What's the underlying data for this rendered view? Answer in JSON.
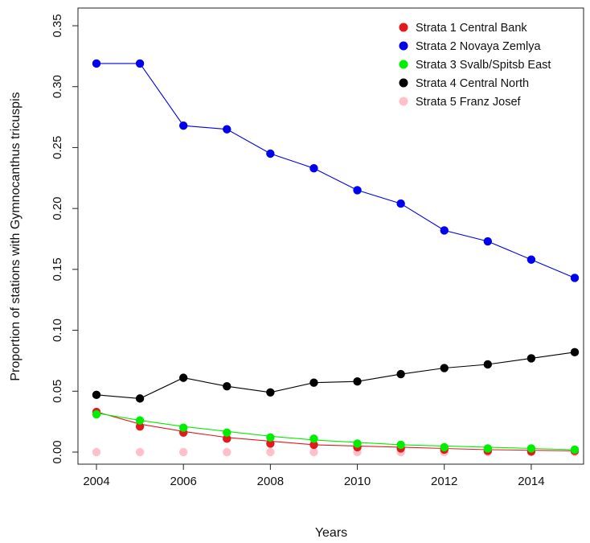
{
  "chart_data": {
    "type": "line",
    "title": "",
    "xlabel": "Years",
    "ylabel": "Proportion of stations with Gymnocanthus tricuspis",
    "x": [
      2004,
      2005,
      2006,
      2007,
      2008,
      2009,
      2010,
      2011,
      2012,
      2013,
      2014,
      2015
    ],
    "xlim": [
      2004,
      2015
    ],
    "ylim": [
      0,
      0.35
    ],
    "x_ticks": [
      2004,
      2006,
      2008,
      2010,
      2012,
      2014
    ],
    "x_tick_labels": [
      "2004",
      "2006",
      "2008",
      "2010",
      "2012",
      "2014"
    ],
    "y_ticks": [
      0,
      0.05,
      0.1,
      0.15,
      0.2,
      0.25,
      0.3,
      0.35
    ],
    "y_tick_labels": [
      "0.00",
      "0.05",
      "0.10",
      "0.15",
      "0.20",
      "0.25",
      "0.30",
      "0.35"
    ],
    "grid": false,
    "legend_position": "top-right",
    "series": [
      {
        "name": "Strata 1 Central Bank",
        "color": "#e31a1c",
        "values": [
          0.033,
          0.021,
          0.016,
          0.011,
          0.007,
          0.006,
          0.004,
          0.003,
          0.002,
          0.001,
          0.0005,
          0.001
        ],
        "fit": [
          0.033,
          0.023,
          0.017,
          0.012,
          0.009,
          0.006,
          0.005,
          0.004,
          0.003,
          0.002,
          0.0015,
          0.001
        ]
      },
      {
        "name": "Strata 2 Novaya Zemlya",
        "color": "#0000ee",
        "values": [
          0.319,
          0.319,
          0.268,
          0.265,
          0.245,
          0.233,
          0.215,
          0.204,
          0.182,
          0.173,
          0.158,
          0.143
        ]
      },
      {
        "name": "Strata 3 Svalb/Spitsb East",
        "color": "#00ee00",
        "values": [
          0.031,
          0.026,
          0.02,
          0.016,
          0.012,
          0.011,
          0.007,
          0.006,
          0.004,
          0.003,
          0.003,
          0.002
        ],
        "fit": [
          0.032,
          0.026,
          0.021,
          0.017,
          0.013,
          0.01,
          0.008,
          0.006,
          0.005,
          0.004,
          0.003,
          0.002
        ]
      },
      {
        "name": "Strata 4 Central North",
        "color": "#000000",
        "values": [
          0.047,
          0.044,
          0.061,
          0.054,
          0.049,
          0.057,
          0.058,
          0.064,
          0.069,
          0.072,
          0.077,
          0.082
        ]
      },
      {
        "name": "Strata 5 Franz Josef",
        "color": "#ffc0cb",
        "line": false,
        "values": [
          0,
          0,
          0,
          0,
          0,
          0,
          0,
          0,
          0,
          0,
          0,
          0
        ]
      }
    ]
  }
}
